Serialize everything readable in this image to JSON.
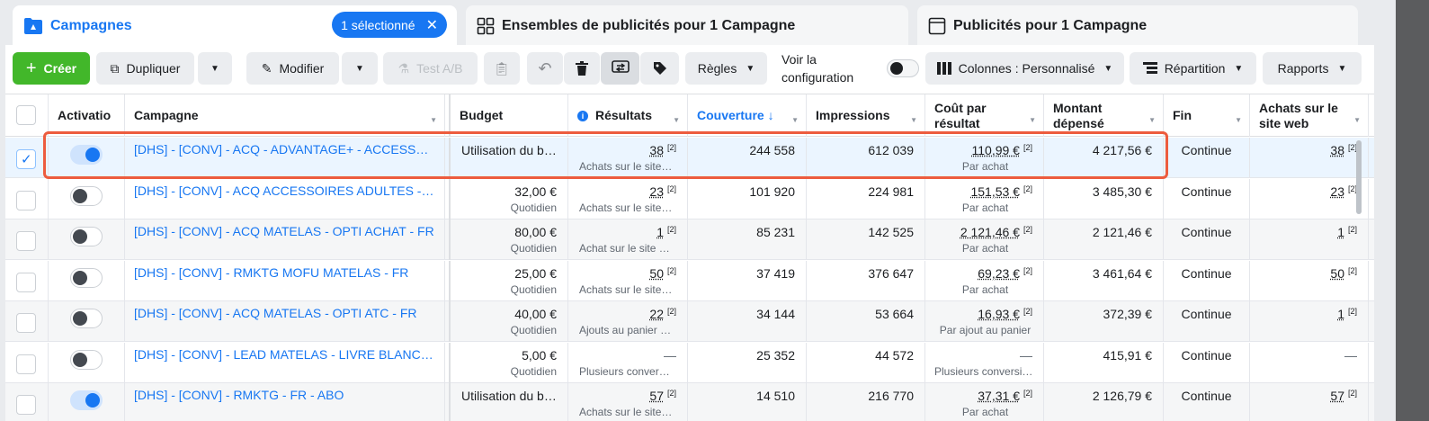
{
  "tabs": {
    "campaigns": {
      "label": "Campagnes",
      "selected_pill": "1 sélectionné"
    },
    "adsets": {
      "label": "Ensembles de publicités pour 1 Campagne"
    },
    "ads": {
      "label": "Publicités pour 1 Campagne"
    }
  },
  "toolbar": {
    "create": "Créer",
    "duplicate": "Dupliquer",
    "edit": "Modifier",
    "ab_test": "Test A/B",
    "rules": "Règles",
    "config_label_1": "Voir la",
    "config_label_2": "configuration",
    "columns": "Colonnes : Personnalisé",
    "breakdown": "Répartition",
    "reports": "Rapports"
  },
  "table": {
    "headers": {
      "activation": "Activatio",
      "campaign": "Campagne",
      "budget": "Budget",
      "results": "Résultats",
      "reach": "Couverture ↓",
      "impressions": "Impressions",
      "cost_per_result_1": "Coût par",
      "cost_per_result_2": "résultat",
      "amount_spent_1": "Montant",
      "amount_spent_2": "dépensé",
      "end": "Fin",
      "web_purchases_1": "Achats sur le",
      "web_purchases_2": "site web"
    },
    "rows": [
      {
        "selected": true,
        "active": true,
        "name": "[DHS] - [CONV] - ACQ - ADVANTAGE+ - ACCESSOIRES - FR",
        "budget": "Utilisation du budget de l'ensemble de publicités",
        "budget_sub": "",
        "results": "38",
        "results_sub": "Achats sur le site web",
        "reach": "244 558",
        "impressions": "612 039",
        "cpr": "110,99 €",
        "cpr_sub": "Par achat",
        "spent": "4 217,56 €",
        "end": "Continue",
        "web": "38"
      },
      {
        "selected": false,
        "active": false,
        "name": "[DHS] - [CONV] - ACQ ACCESSOIRES ADULTES - FR",
        "budget": "32,00 €",
        "budget_sub": "Quotidien",
        "results": "23",
        "results_sub": "Achats sur le site web",
        "reach": "101 920",
        "impressions": "224 981",
        "cpr": "151,53 €",
        "cpr_sub": "Par achat",
        "spent": "3 485,30 €",
        "end": "Continue",
        "web": "23"
      },
      {
        "selected": false,
        "active": false,
        "name": "[DHS] - [CONV] - ACQ MATELAS - OPTI ACHAT - FR",
        "budget": "80,00 €",
        "budget_sub": "Quotidien",
        "results": "1",
        "results_sub": "Achat sur le site web",
        "reach": "85 231",
        "impressions": "142 525",
        "cpr": "2 121,46 €",
        "cpr_sub": "Par achat",
        "spent": "2 121,46 €",
        "end": "Continue",
        "web": "1"
      },
      {
        "selected": false,
        "active": false,
        "name": "[DHS] - [CONV] - RMKTG MOFU MATELAS - FR",
        "budget": "25,00 €",
        "budget_sub": "Quotidien",
        "results": "50",
        "results_sub": "Achats sur le site web",
        "reach": "37 419",
        "impressions": "376 647",
        "cpr": "69,23 €",
        "cpr_sub": "Par achat",
        "spent": "3 461,64 €",
        "end": "Continue",
        "web": "50"
      },
      {
        "selected": false,
        "active": false,
        "name": "[DHS] - [CONV] - ACQ MATELAS - OPTI ATC - FR",
        "budget": "40,00 €",
        "budget_sub": "Quotidien",
        "results": "22",
        "results_sub": "Ajouts au panier sur le site web",
        "reach": "34 144",
        "impressions": "53 664",
        "cpr": "16,93 €",
        "cpr_sub": "Par ajout au panier",
        "spent": "372,39 €",
        "end": "Continue",
        "web": "1"
      },
      {
        "selected": false,
        "active": false,
        "name": "[DHS] - [CONV] - LEAD MATELAS - LIVRE BLANC - FR",
        "budget": "5,00 €",
        "budget_sub": "Quotidien",
        "results": "—",
        "results_sub": "Plusieurs conversions",
        "reach": "25 352",
        "impressions": "44 572",
        "cpr": "—",
        "cpr_sub": "Plusieurs conversions",
        "spent": "415,91 €",
        "end": "Continue",
        "web": "—"
      },
      {
        "selected": false,
        "active": true,
        "name": "[DHS] - [CONV] - RMKTG - FR - ABO",
        "budget": "Utilisation du budget de l'ensemble de publicités",
        "budget_sub": "",
        "results": "57",
        "results_sub": "Achats sur le site web",
        "reach": "14 510",
        "impressions": "216 770",
        "cpr": "37,31 €",
        "cpr_sub": "Par achat",
        "spent": "2 126,79 €",
        "end": "Continue",
        "web": "57"
      }
    ],
    "note_marker": "[2]"
  },
  "colors": {
    "accent": "#1877f2",
    "create": "#42b72a",
    "highlight": "#ed5c3e"
  }
}
